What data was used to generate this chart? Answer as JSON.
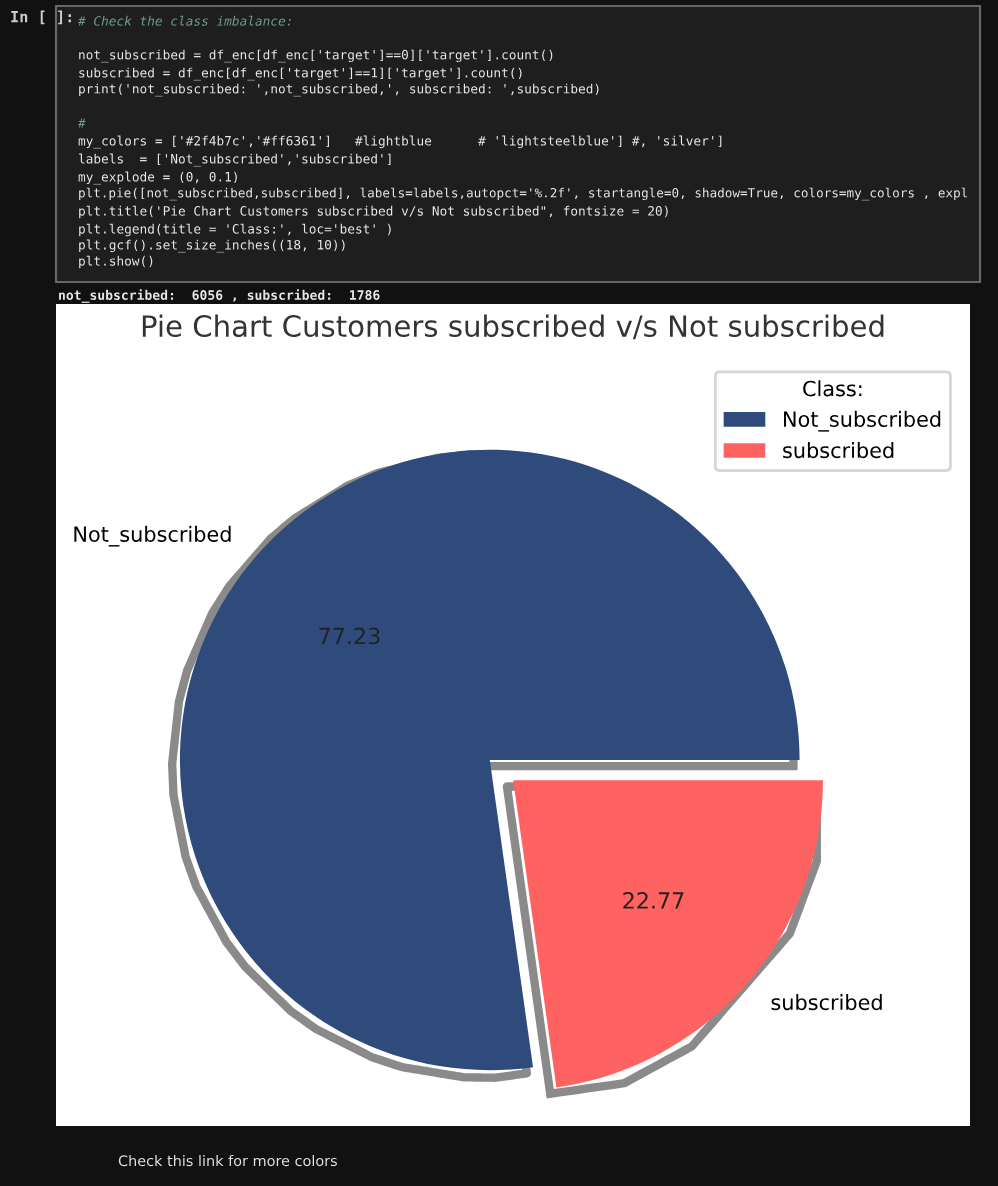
{
  "chart_data": {
    "type": "pie",
    "title": "Pie Chart Customers subscribed v/s Not subscribed",
    "categories": [
      "Not_subscribed",
      "subscribed"
    ],
    "values": [
      77.23,
      22.77
    ],
    "colors": [
      "#2f4b7c",
      "#ff6361"
    ],
    "data_labels": true,
    "legend": "top right",
    "legend_title": "Class:",
    "annotations": [
      "In [ ]:",
      "# Check the class imbalance:",
      "not_subscribed = df_enc[df_enc['target']==0]['target'].count()",
      "subscribed = df_enc[df_enc['target']==1]['target'].count()",
      "print('not_subscribed: ',not_subscribed,', subscribed: ',subscribed)",
      "#",
      "my_colors = ['#2f4b7c','#ff6361']   #lightblue      # 'lightsteelblue'] #, 'silver']",
      "labels  = ['Not_subscribed','subscribed']",
      "my_explode = (0, 0.1)",
      "plt.pie([not_subscribed,subscribed], labels=labels,autopct='%.2f', startangle=0, shadow=True, colors=my_colors , expl",
      "plt.title('Pie Chart Customers subscribed v/s Not subscribed\", fontsize = 20)",
      "plt.legend(title = 'Class:', loc='best' )",
      "plt.gcf().set_size_inches((18, 10))",
      "plt.show()",
      "not_subscribed:  6056 , subscribed:  1786",
      "Check this link for more colors"
    ]
  }
}
